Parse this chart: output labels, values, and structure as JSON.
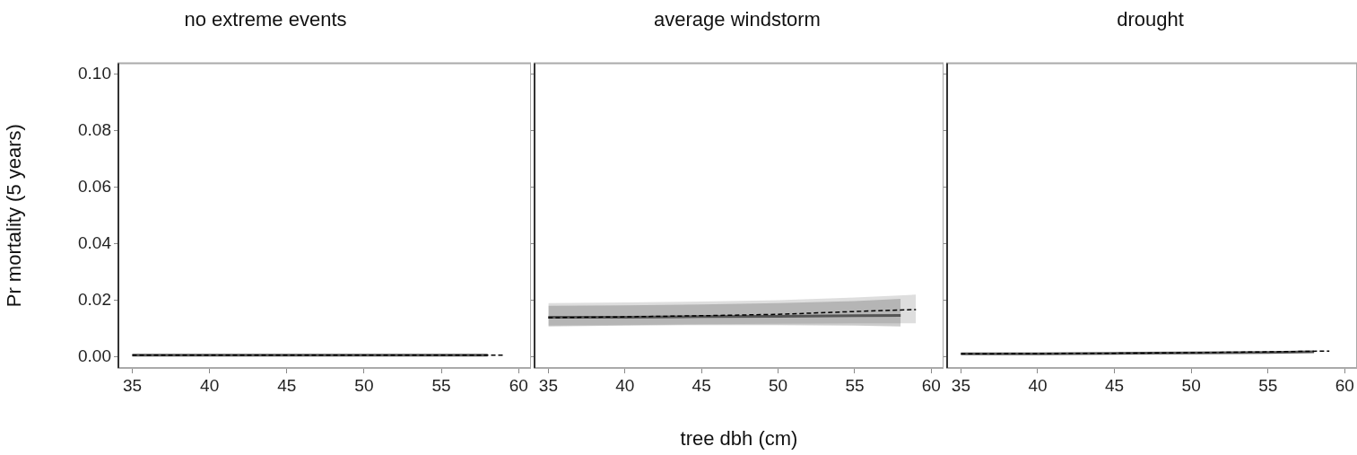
{
  "chart_data": [
    {
      "type": "line",
      "title": "no extreme events",
      "ylabel": "Pr mortality (5 years)",
      "xlim": [
        34.1,
        60.8
      ],
      "xticks": [
        35,
        40,
        45,
        50,
        55,
        60
      ],
      "ylim": [
        -0.004,
        0.104
      ],
      "yticks": [
        {
          "value": 0,
          "label": "0.00"
        },
        {
          "value": 0.02,
          "label": "0.02"
        },
        {
          "value": 0.04,
          "label": "0.04"
        },
        {
          "value": 0.06,
          "label": "0.06"
        },
        {
          "value": 0.08,
          "label": "0.08"
        },
        {
          "value": 0.1,
          "label": "0.10"
        }
      ],
      "grid": false,
      "legend": false,
      "marker": "none",
      "series": [
        {
          "color": "#555555",
          "line_style": "solid",
          "x": [
            35,
            40,
            45,
            50,
            55,
            58
          ],
          "values": [
            0.0005,
            0.0005,
            0.0005,
            0.0005,
            0.0005,
            0.0005
          ]
        },
        {
          "color": "#000000",
          "line_style": "dashed",
          "x": [
            35,
            40,
            45,
            50,
            55,
            59
          ],
          "values": [
            0.0005,
            0.0005,
            0.0005,
            0.0005,
            0.0005,
            0.0005
          ]
        }
      ]
    },
    {
      "type": "line",
      "title": "average windstorm",
      "xlabel": "tree dbh (cm)",
      "xlim": [
        34.1,
        60.8
      ],
      "xticks": [
        35,
        40,
        45,
        50,
        55,
        60
      ],
      "ylim": [
        -0.004,
        0.104
      ],
      "yticks": [
        0,
        0.02,
        0.04,
        0.06,
        0.08,
        0.1
      ],
      "tick_labels": "x",
      "grid": false,
      "legend": false,
      "marker": "none",
      "series": [
        {
          "color": "#555555",
          "line_style": "solid",
          "x": [
            35,
            40,
            45,
            50,
            55,
            58
          ],
          "values": [
            0.014,
            0.014,
            0.0142,
            0.0143,
            0.0145,
            0.0146
          ],
          "lower": [
            0.0107,
            0.011,
            0.0112,
            0.0112,
            0.011,
            0.0107
          ],
          "upper": [
            0.018,
            0.0182,
            0.0185,
            0.019,
            0.0197,
            0.0205
          ]
        },
        {
          "color": "#000000",
          "line_style": "dashed",
          "x": [
            35,
            40,
            45,
            50,
            55,
            59
          ],
          "values": [
            0.0138,
            0.0141,
            0.0145,
            0.015,
            0.016,
            0.0167
          ],
          "lower": [
            0.011,
            0.0112,
            0.0115,
            0.0117,
            0.0118,
            0.0118
          ],
          "upper": [
            0.019,
            0.0192,
            0.0195,
            0.02,
            0.021,
            0.022
          ]
        }
      ]
    },
    {
      "type": "line",
      "title": "drought",
      "xlim": [
        34.1,
        60.8
      ],
      "xticks": [
        35,
        40,
        45,
        50,
        55,
        60
      ],
      "ylim": [
        -0.004,
        0.104
      ],
      "yticks": [
        0,
        0.02,
        0.04,
        0.06,
        0.08,
        0.1
      ],
      "tick_labels": "x",
      "grid": false,
      "legend": false,
      "marker": "none",
      "series": [
        {
          "color": "#555555",
          "line_style": "solid",
          "x": [
            35,
            40,
            45,
            50,
            55,
            58
          ],
          "values": [
            0.001,
            0.001,
            0.0012,
            0.0013,
            0.0015,
            0.0017
          ]
        },
        {
          "color": "#000000",
          "line_style": "dashed",
          "x": [
            35,
            40,
            45,
            50,
            55,
            59
          ],
          "values": [
            0.001,
            0.0011,
            0.0012,
            0.0014,
            0.0017,
            0.002
          ]
        }
      ]
    }
  ]
}
